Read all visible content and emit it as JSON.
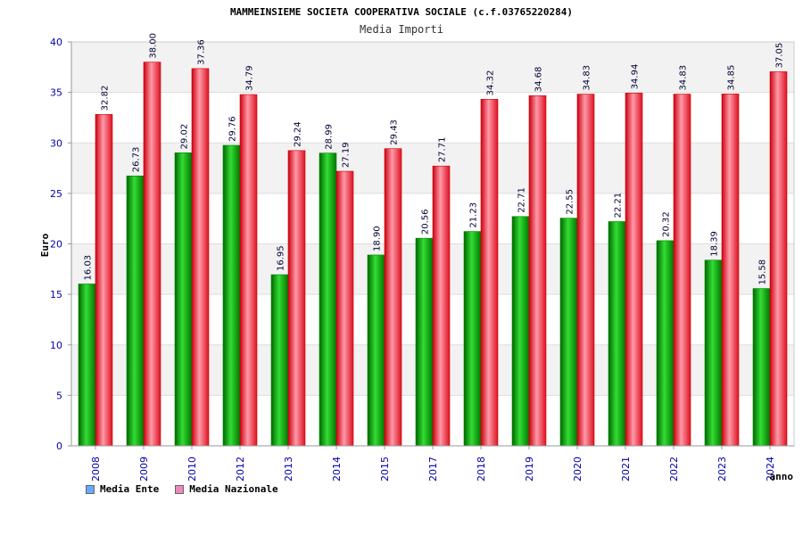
{
  "chart_data": {
    "type": "bar",
    "title": "MAMMEINSIEME SOCIETA COOPERATIVA SOCIALE (c.f.03765220284)",
    "subtitle": "Media Importi",
    "ylabel": "Euro",
    "xlabel": "anno",
    "ylim": [
      0,
      40
    ],
    "yticks": [
      0,
      5,
      10,
      15,
      20,
      25,
      30,
      35,
      40
    ],
    "categories": [
      "2008",
      "2009",
      "2010",
      "2012",
      "2013",
      "2014",
      "2015",
      "2017",
      "2018",
      "2019",
      "2020",
      "2021",
      "2022",
      "2023",
      "2024"
    ],
    "series": [
      {
        "name": "Media Ente",
        "color": "#00aa00",
        "values": [
          16.03,
          26.73,
          29.02,
          29.76,
          16.95,
          28.99,
          18.9,
          20.56,
          21.23,
          22.71,
          22.55,
          22.21,
          20.32,
          18.39,
          15.58
        ],
        "labels": [
          "16.03",
          "26.73",
          "29.02",
          "29.76",
          "16.95",
          "28.99",
          "18.90",
          "20.56",
          "21.23",
          "22.71",
          "22.55",
          "22.21",
          "20.32",
          "18.39",
          "15.58"
        ]
      },
      {
        "name": "Media Nazionale",
        "color": "#ee1133",
        "values": [
          32.82,
          38.0,
          37.36,
          34.79,
          29.24,
          27.19,
          29.43,
          27.71,
          34.32,
          34.68,
          34.83,
          34.94,
          34.83,
          34.85,
          37.05
        ],
        "labels": [
          "32.82",
          "38.00",
          "37.36",
          "34.79",
          "29.24",
          "27.19",
          "29.43",
          "27.71",
          "34.32",
          "34.68",
          "34.83",
          "34.94",
          "34.83",
          "34.85",
          "37.05"
        ]
      }
    ]
  },
  "legend": {
    "items": [
      {
        "label": "Media Ente",
        "color": "#66aaff"
      },
      {
        "label": "Media Nazionale",
        "color": "#ee88bb"
      }
    ]
  }
}
